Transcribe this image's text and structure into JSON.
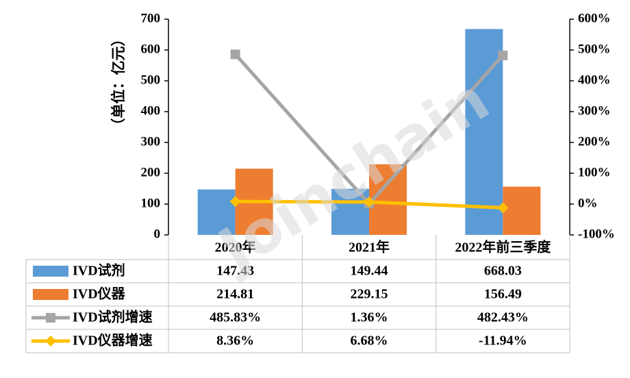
{
  "chart_data": {
    "type": "bar",
    "ylabel": "（单位：亿元）",
    "categories": [
      "2020年",
      "2021年",
      "2022年前三季度"
    ],
    "ylim": [
      0,
      700
    ],
    "yticks": [
      0,
      100,
      200,
      300,
      400,
      500,
      600,
      700
    ],
    "y2lim": [
      -100,
      600
    ],
    "y2ticks": [
      "-100%",
      "0%",
      "100%",
      "200%",
      "300%",
      "400%",
      "500%",
      "600%"
    ],
    "series": [
      {
        "name": "IVD试剂",
        "kind": "bar",
        "axis": "left",
        "color": "#5b9bd5",
        "values": [
          147.43,
          149.44,
          668.03
        ],
        "labels": [
          "147.43",
          "149.44",
          "668.03"
        ]
      },
      {
        "name": "IVD仪器",
        "kind": "bar",
        "axis": "left",
        "color": "#ed7d31",
        "values": [
          214.81,
          229.15,
          156.49
        ],
        "labels": [
          "214.81",
          "229.15",
          "156.49"
        ]
      },
      {
        "name": "IVD试剂增速",
        "kind": "line",
        "axis": "right",
        "color": "#a5a5a5",
        "marker": "square",
        "values": [
          485.83,
          1.36,
          482.43
        ],
        "labels": [
          "485.83%",
          "1.36%",
          "482.43%"
        ]
      },
      {
        "name": "IVD仪器增速",
        "kind": "line",
        "axis": "right",
        "color": "#ffc000",
        "marker": "diamond",
        "values": [
          8.36,
          6.68,
          -11.94
        ],
        "labels": [
          "8.36%",
          "6.68%",
          "-11.94%"
        ]
      }
    ],
    "legend": "data-table"
  },
  "watermark": "Joinchain"
}
